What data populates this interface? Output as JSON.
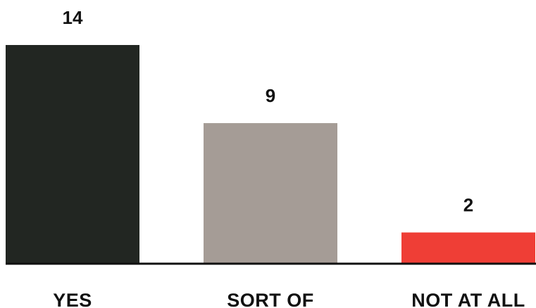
{
  "chart_data": {
    "type": "bar",
    "categories": [
      "YES",
      "SORT OF",
      "NOT AT ALL"
    ],
    "values": [
      14,
      9,
      2
    ],
    "data_labels": [
      "14",
      "9",
      "2"
    ],
    "colors": [
      "#222622",
      "#a59c96",
      "#ef3e36"
    ],
    "axis_color": "#111111",
    "title": "",
    "xlabel": "",
    "ylabel": "",
    "ylim": [
      0,
      14
    ],
    "grid": false,
    "legend": "none"
  }
}
